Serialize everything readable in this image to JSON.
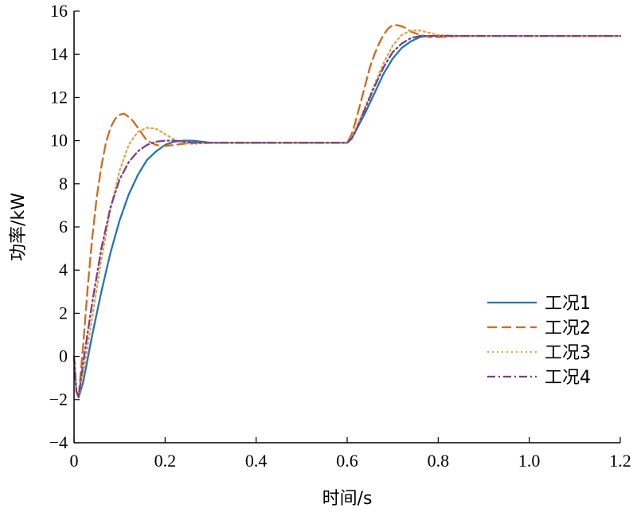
{
  "chart_data": {
    "type": "line",
    "title": "",
    "xlabel": "时间/s",
    "ylabel": "功率/kW",
    "xlim": [
      0,
      1.2
    ],
    "ylim": [
      -4,
      16
    ],
    "xticks": [
      0,
      0.2,
      0.4,
      0.6,
      0.8,
      1.0,
      1.2
    ],
    "xtick_labels": [
      "0",
      "0.2",
      "0.4",
      "0.6",
      "0.8",
      "1.0",
      "1.2"
    ],
    "yticks": [
      -4,
      -2,
      0,
      2,
      4,
      6,
      8,
      10,
      12,
      14,
      16
    ],
    "ytick_labels": [
      "−4",
      "−2",
      "0",
      "2",
      "4",
      "6",
      "8",
      "10",
      "12",
      "14",
      "16"
    ],
    "grid": false,
    "legend_position": "right-middle",
    "series": [
      {
        "name": "工况1",
        "color": "#1f77b4",
        "dash": "solid",
        "x": [
          0,
          0.005,
          0.01,
          0.02,
          0.04,
          0.06,
          0.08,
          0.1,
          0.12,
          0.14,
          0.16,
          0.18,
          0.2,
          0.22,
          0.24,
          0.26,
          0.28,
          0.3,
          0.35,
          0.4,
          0.45,
          0.5,
          0.55,
          0.6,
          0.61,
          0.62,
          0.64,
          0.66,
          0.68,
          0.7,
          0.72,
          0.74,
          0.76,
          0.78,
          0.8,
          0.85,
          0.9,
          1.0,
          1.1,
          1.2
        ],
        "y": [
          0,
          -1.6,
          -1.9,
          -1.2,
          1.0,
          3.0,
          4.8,
          6.3,
          7.5,
          8.4,
          9.1,
          9.5,
          9.8,
          9.95,
          10.0,
          10.0,
          9.95,
          9.9,
          9.9,
          9.9,
          9.9,
          9.9,
          9.9,
          9.9,
          10.1,
          10.5,
          11.3,
          12.2,
          13.1,
          13.8,
          14.3,
          14.6,
          14.8,
          14.85,
          14.85,
          14.85,
          14.85,
          14.85,
          14.85,
          14.85
        ]
      },
      {
        "name": "工况2",
        "color": "#d2691e",
        "dash": "dashed",
        "x": [
          0,
          0.005,
          0.01,
          0.02,
          0.03,
          0.04,
          0.05,
          0.06,
          0.07,
          0.08,
          0.09,
          0.1,
          0.11,
          0.12,
          0.13,
          0.14,
          0.15,
          0.16,
          0.18,
          0.2,
          0.22,
          0.24,
          0.26,
          0.3,
          0.35,
          0.4,
          0.5,
          0.6,
          0.61,
          0.62,
          0.63,
          0.64,
          0.65,
          0.66,
          0.67,
          0.68,
          0.69,
          0.7,
          0.71,
          0.72,
          0.73,
          0.74,
          0.76,
          0.78,
          0.8,
          0.85,
          0.9,
          1.0,
          1.1,
          1.2
        ],
        "y": [
          0,
          -1.6,
          -1.9,
          0.5,
          3.2,
          5.5,
          7.4,
          8.8,
          9.9,
          10.6,
          11.0,
          11.2,
          11.25,
          11.1,
          10.9,
          10.6,
          10.3,
          10.0,
          9.8,
          9.75,
          9.8,
          9.85,
          9.9,
          9.9,
          9.9,
          9.9,
          9.9,
          9.9,
          10.3,
          11.0,
          11.8,
          12.6,
          13.4,
          14.0,
          14.5,
          14.9,
          15.2,
          15.35,
          15.35,
          15.3,
          15.2,
          15.05,
          14.9,
          14.8,
          14.8,
          14.85,
          14.85,
          14.85,
          14.85,
          14.85
        ]
      },
      {
        "name": "工况3",
        "color": "#e8a33d",
        "dash": "dotted",
        "x": [
          0,
          0.005,
          0.01,
          0.02,
          0.04,
          0.06,
          0.08,
          0.1,
          0.12,
          0.14,
          0.16,
          0.18,
          0.2,
          0.22,
          0.24,
          0.26,
          0.3,
          0.35,
          0.4,
          0.5,
          0.6,
          0.61,
          0.62,
          0.64,
          0.66,
          0.68,
          0.7,
          0.72,
          0.74,
          0.76,
          0.78,
          0.8,
          0.85,
          0.9,
          1.0,
          1.1,
          1.2
        ],
        "y": [
          0,
          -1.6,
          -1.9,
          -0.8,
          1.8,
          4.5,
          6.8,
          8.6,
          9.8,
          10.4,
          10.6,
          10.55,
          10.3,
          10.05,
          9.9,
          9.85,
          9.9,
          9.9,
          9.9,
          9.9,
          9.9,
          10.15,
          10.6,
          11.6,
          12.6,
          13.6,
          14.4,
          14.9,
          15.1,
          15.1,
          15.0,
          14.9,
          14.85,
          14.85,
          14.85,
          14.85,
          14.85
        ]
      },
      {
        "name": "工况4",
        "color": "#7b3f8c",
        "dash": "dashdot",
        "x": [
          0,
          0.005,
          0.01,
          0.02,
          0.04,
          0.06,
          0.08,
          0.1,
          0.12,
          0.14,
          0.16,
          0.18,
          0.2,
          0.22,
          0.24,
          0.26,
          0.3,
          0.35,
          0.4,
          0.5,
          0.6,
          0.61,
          0.62,
          0.64,
          0.66,
          0.68,
          0.7,
          0.72,
          0.74,
          0.76,
          0.78,
          0.8,
          0.85,
          0.9,
          1.0,
          1.1,
          1.2
        ],
        "y": [
          0,
          -1.6,
          -1.9,
          -0.3,
          2.5,
          5.0,
          6.9,
          8.2,
          9.0,
          9.5,
          9.8,
          9.95,
          10.0,
          10.0,
          9.95,
          9.9,
          9.9,
          9.9,
          9.9,
          9.9,
          9.9,
          10.1,
          10.5,
          11.5,
          12.5,
          13.4,
          14.1,
          14.5,
          14.75,
          14.85,
          14.85,
          14.85,
          14.85,
          14.85,
          14.85,
          14.85,
          14.85
        ]
      }
    ]
  }
}
